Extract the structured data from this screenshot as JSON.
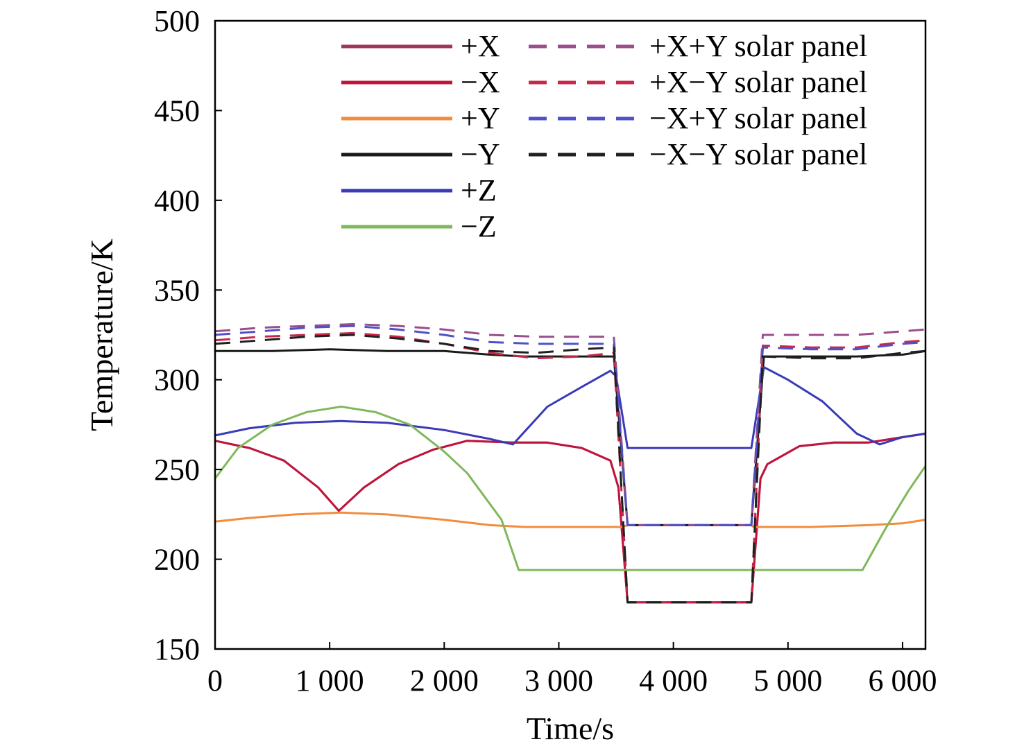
{
  "chart_data": {
    "type": "line",
    "title": "",
    "xlabel": "Time/s",
    "ylabel": "Temperature/K",
    "xlim": [
      0,
      6200
    ],
    "ylim": [
      150,
      500
    ],
    "xticks": [
      0,
      1000,
      2000,
      3000,
      4000,
      5000,
      6000
    ],
    "xtick_labels": [
      "0",
      "1 000",
      "2 000",
      "3 000",
      "4 000",
      "5 000",
      "6 000"
    ],
    "yticks": [
      150,
      200,
      250,
      300,
      350,
      400,
      450,
      500
    ],
    "ytick_labels": [
      "150",
      "200",
      "250",
      "300",
      "350",
      "400",
      "450",
      "500"
    ],
    "grid": false,
    "legend": {
      "placement": "top-right",
      "columns": 2
    },
    "series": [
      {
        "name": "+X",
        "style": "solid",
        "color": "#a0365a",
        "points": [
          [
            0,
            266
          ],
          [
            300,
            262
          ],
          [
            600,
            255
          ],
          [
            900,
            240
          ],
          [
            1080,
            227
          ],
          [
            1300,
            240
          ],
          [
            1600,
            253
          ],
          [
            1900,
            261
          ],
          [
            2200,
            266
          ],
          [
            2600,
            265
          ],
          [
            2900,
            265
          ],
          [
            3200,
            262
          ],
          [
            3450,
            255
          ],
          [
            3520,
            240
          ],
          [
            3600,
            176
          ],
          [
            4000,
            176
          ],
          [
            4680,
            176
          ],
          [
            4760,
            245
          ],
          [
            4820,
            253
          ],
          [
            5100,
            263
          ],
          [
            5400,
            265
          ],
          [
            5700,
            265
          ],
          [
            6000,
            268
          ],
          [
            6200,
            270
          ]
        ]
      },
      {
        "name": "−X",
        "style": "solid",
        "color": "#c0143c",
        "points": [
          [
            0,
            266
          ],
          [
            300,
            262
          ],
          [
            600,
            255
          ],
          [
            900,
            240
          ],
          [
            1080,
            227
          ],
          [
            1300,
            240
          ],
          [
            1600,
            253
          ],
          [
            1900,
            261
          ],
          [
            2200,
            266
          ],
          [
            2600,
            265
          ],
          [
            2900,
            265
          ],
          [
            3200,
            262
          ],
          [
            3450,
            255
          ],
          [
            3520,
            240
          ],
          [
            3600,
            176
          ],
          [
            4000,
            176
          ],
          [
            4680,
            176
          ],
          [
            4760,
            245
          ],
          [
            4820,
            253
          ],
          [
            5100,
            263
          ],
          [
            5400,
            265
          ],
          [
            5700,
            265
          ],
          [
            6000,
            268
          ],
          [
            6200,
            270
          ]
        ]
      },
      {
        "name": "+Y",
        "style": "solid",
        "color": "#f28c3c",
        "points": [
          [
            0,
            221
          ],
          [
            300,
            223
          ],
          [
            700,
            225
          ],
          [
            1100,
            226
          ],
          [
            1500,
            225
          ],
          [
            2000,
            222
          ],
          [
            2400,
            219
          ],
          [
            2700,
            218
          ],
          [
            3200,
            218
          ],
          [
            3550,
            218
          ],
          [
            3600,
            219
          ],
          [
            4680,
            219
          ],
          [
            4700,
            218
          ],
          [
            5200,
            218
          ],
          [
            5700,
            219
          ],
          [
            6000,
            220
          ],
          [
            6200,
            222
          ]
        ]
      },
      {
        "name": "−Y",
        "style": "solid",
        "color": "#1a1a1a",
        "points": [
          [
            0,
            316
          ],
          [
            500,
            316
          ],
          [
            1000,
            317
          ],
          [
            1500,
            316
          ],
          [
            2000,
            316
          ],
          [
            2400,
            314
          ],
          [
            2700,
            313
          ],
          [
            3200,
            313
          ],
          [
            3480,
            313
          ],
          [
            3600,
            219
          ],
          [
            4000,
            219
          ],
          [
            4680,
            219
          ],
          [
            4790,
            313
          ],
          [
            5200,
            313
          ],
          [
            5600,
            313
          ],
          [
            6000,
            314
          ],
          [
            6200,
            316
          ]
        ]
      },
      {
        "name": "+Z",
        "style": "solid",
        "color": "#3a3ab8",
        "points": [
          [
            0,
            269
          ],
          [
            300,
            273
          ],
          [
            700,
            276
          ],
          [
            1100,
            277
          ],
          [
            1500,
            276
          ],
          [
            2000,
            272
          ],
          [
            2400,
            267
          ],
          [
            2600,
            264
          ],
          [
            2900,
            285
          ],
          [
            3200,
            296
          ],
          [
            3450,
            305
          ],
          [
            3500,
            302
          ],
          [
            3600,
            262
          ],
          [
            4000,
            262
          ],
          [
            4680,
            262
          ],
          [
            4790,
            307
          ],
          [
            5000,
            300
          ],
          [
            5300,
            288
          ],
          [
            5600,
            270
          ],
          [
            5800,
            264
          ],
          [
            6000,
            268
          ],
          [
            6200,
            270
          ]
        ]
      },
      {
        "name": "−Z",
        "style": "solid",
        "color": "#7fb85a",
        "points": [
          [
            0,
            245
          ],
          [
            200,
            262
          ],
          [
            500,
            275
          ],
          [
            800,
            282
          ],
          [
            1100,
            285
          ],
          [
            1400,
            282
          ],
          [
            1700,
            275
          ],
          [
            2000,
            260
          ],
          [
            2200,
            248
          ],
          [
            2500,
            222
          ],
          [
            2650,
            194
          ],
          [
            3000,
            194
          ],
          [
            3600,
            194
          ],
          [
            4000,
            194
          ],
          [
            5000,
            194
          ],
          [
            5650,
            194
          ],
          [
            5850,
            217
          ],
          [
            6050,
            238
          ],
          [
            6200,
            252
          ]
        ]
      },
      {
        "name": "+X+Y solar panel",
        "style": "dashed",
        "color": "#9a4e8c",
        "points": [
          [
            0,
            327
          ],
          [
            400,
            329
          ],
          [
            800,
            330
          ],
          [
            1200,
            331
          ],
          [
            1600,
            330
          ],
          [
            2000,
            328
          ],
          [
            2400,
            325
          ],
          [
            2800,
            324
          ],
          [
            3200,
            324
          ],
          [
            3480,
            324
          ],
          [
            3600,
            219
          ],
          [
            4680,
            219
          ],
          [
            4780,
            325
          ],
          [
            5200,
            325
          ],
          [
            5600,
            325
          ],
          [
            6000,
            327
          ],
          [
            6200,
            328
          ]
        ]
      },
      {
        "name": "+X−Y solar panel",
        "style": "dashed",
        "color": "#c8284a",
        "points": [
          [
            0,
            322
          ],
          [
            400,
            324
          ],
          [
            800,
            325
          ],
          [
            1200,
            326
          ],
          [
            1600,
            324
          ],
          [
            2000,
            320
          ],
          [
            2400,
            315
          ],
          [
            2800,
            312
          ],
          [
            3200,
            313
          ],
          [
            3480,
            315
          ],
          [
            3600,
            176
          ],
          [
            4680,
            176
          ],
          [
            4780,
            319
          ],
          [
            5200,
            318
          ],
          [
            5600,
            318
          ],
          [
            6000,
            321
          ],
          [
            6200,
            322
          ]
        ]
      },
      {
        "name": "−X+Y solar panel",
        "style": "dashed",
        "color": "#5050c8",
        "points": [
          [
            0,
            325
          ],
          [
            400,
            327
          ],
          [
            800,
            329
          ],
          [
            1200,
            330
          ],
          [
            1600,
            328
          ],
          [
            2000,
            325
          ],
          [
            2400,
            321
          ],
          [
            2800,
            320
          ],
          [
            3200,
            320
          ],
          [
            3480,
            320
          ],
          [
            3600,
            219
          ],
          [
            4680,
            219
          ],
          [
            4780,
            318
          ],
          [
            5200,
            317
          ],
          [
            5600,
            317
          ],
          [
            6000,
            320
          ],
          [
            6200,
            321
          ]
        ]
      },
      {
        "name": "−X−Y solar panel",
        "style": "dashed",
        "color": "#202020",
        "points": [
          [
            0,
            320
          ],
          [
            400,
            322
          ],
          [
            800,
            324
          ],
          [
            1200,
            325
          ],
          [
            1600,
            323
          ],
          [
            2000,
            320
          ],
          [
            2400,
            316
          ],
          [
            2800,
            315
          ],
          [
            3200,
            317
          ],
          [
            3480,
            318
          ],
          [
            3600,
            176
          ],
          [
            4680,
            176
          ],
          [
            4780,
            313
          ],
          [
            5200,
            312
          ],
          [
            5600,
            312
          ],
          [
            6000,
            315
          ],
          [
            6200,
            316
          ]
        ]
      }
    ]
  }
}
